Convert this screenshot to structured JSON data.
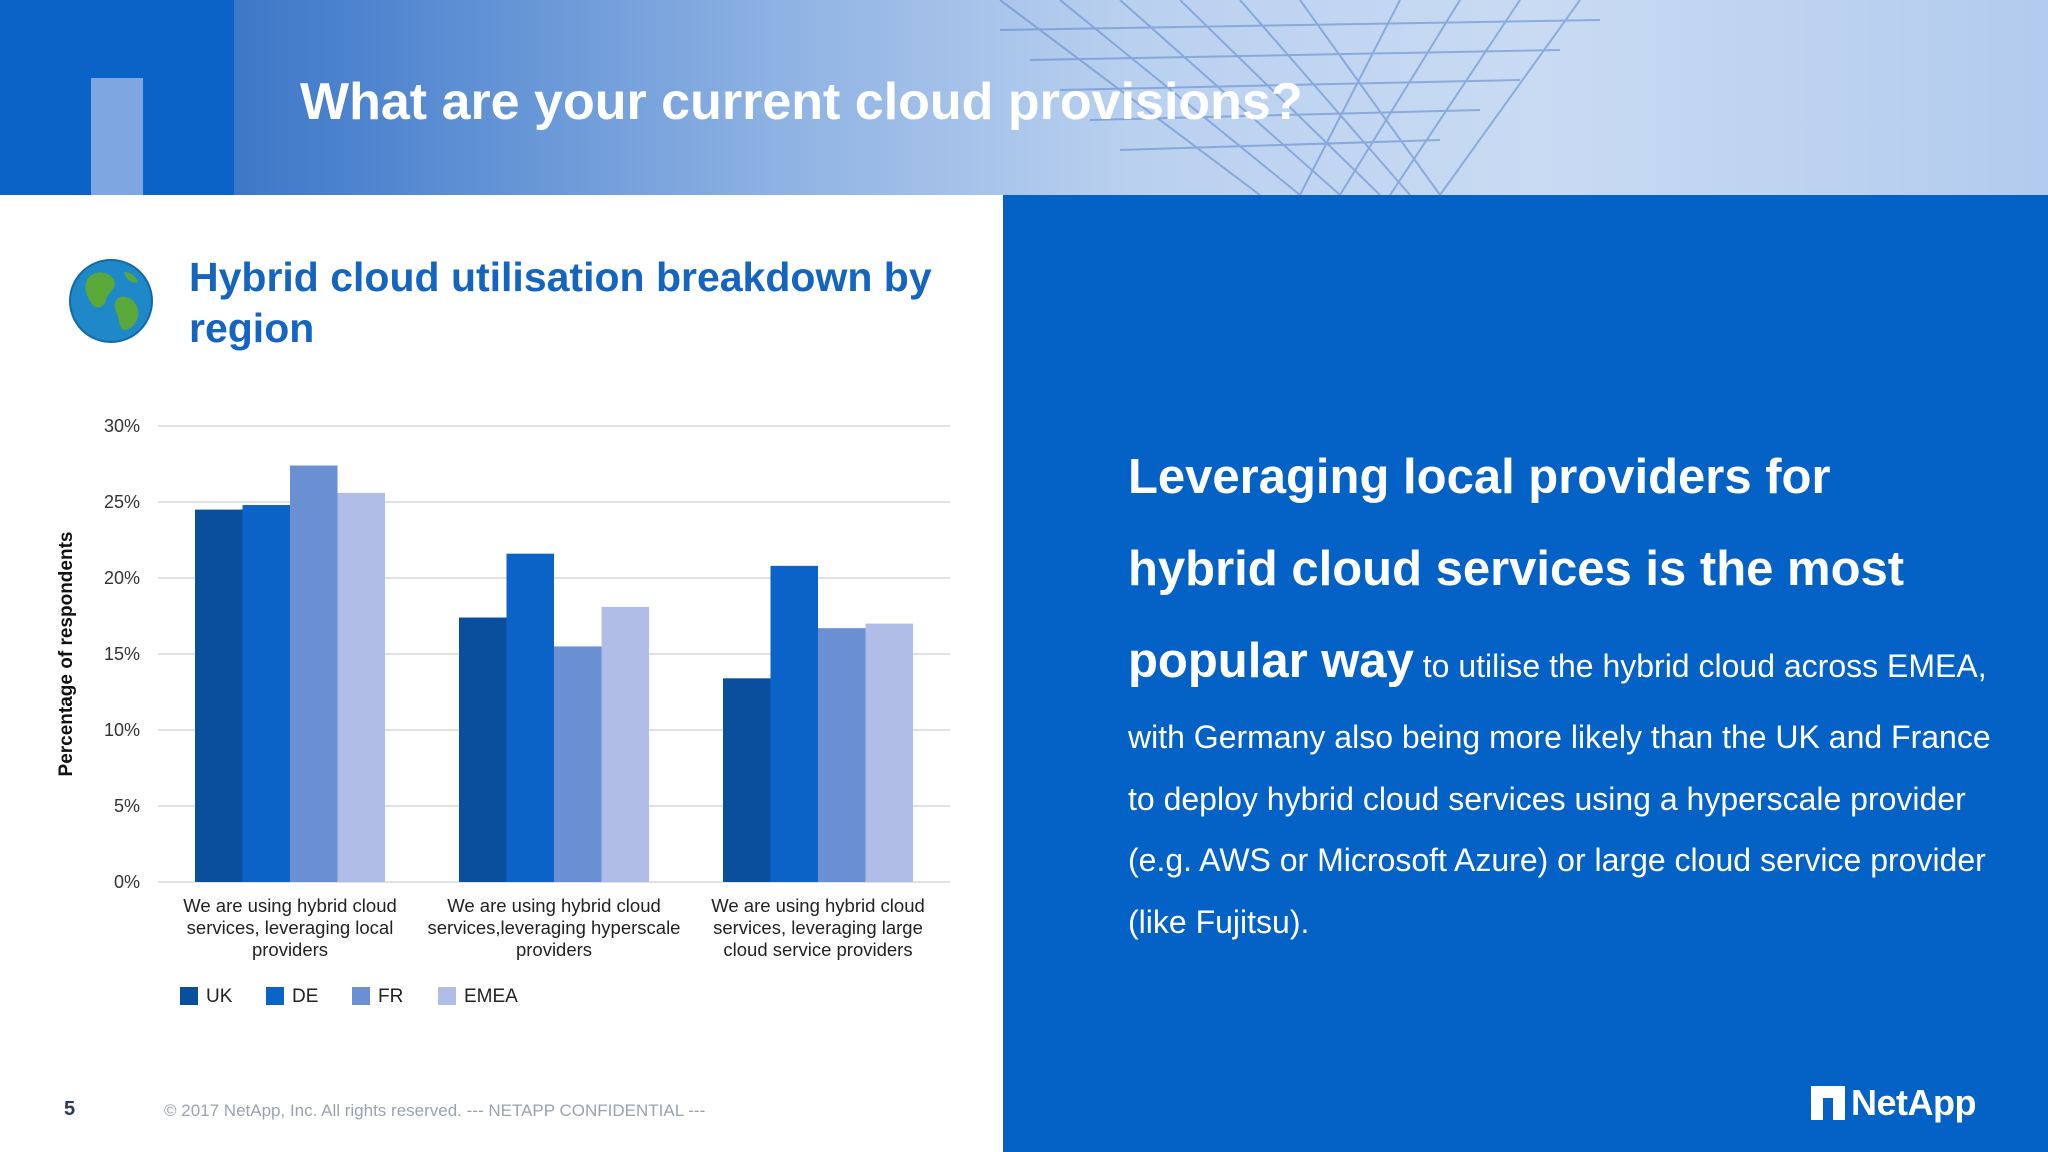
{
  "header": {
    "title": "What are your current cloud provisions?"
  },
  "chart_section": {
    "icon": "globe-icon",
    "title": "Hybrid cloud utilisation breakdown by region"
  },
  "chart_data": {
    "type": "bar",
    "title": "Hybrid cloud utilisation breakdown by region",
    "xlabel": "",
    "ylabel": "Percentage of respondents",
    "ylim": [
      0,
      30
    ],
    "yticks": [
      "0%",
      "5%",
      "10%",
      "15%",
      "20%",
      "25%",
      "30%"
    ],
    "ytick_values": [
      0,
      5,
      10,
      15,
      20,
      25,
      30
    ],
    "categories": [
      [
        "We are using hybrid cloud",
        "services, leveraging local",
        "providers"
      ],
      [
        "We are using hybrid cloud",
        "services,leveraging hyperscale",
        "providers"
      ],
      [
        "We are using hybrid cloud",
        "services, leveraging large",
        "cloud service providers"
      ]
    ],
    "series": [
      {
        "name": "UK",
        "color": "#0a4f9e",
        "values": [
          24.5,
          17.4,
          13.4
        ]
      },
      {
        "name": "DE",
        "color": "#0b63c7",
        "values": [
          24.8,
          21.6,
          20.8
        ]
      },
      {
        "name": "FR",
        "color": "#6a8fd2",
        "values": [
          27.4,
          15.5,
          16.7
        ]
      },
      {
        "name": "EMEA",
        "color": "#b0bde6",
        "values": [
          25.6,
          18.1,
          17.0
        ]
      }
    ],
    "grid": true,
    "legend_position": "bottom-left"
  },
  "insight": {
    "big_line_1": "Leveraging local providers for",
    "big_line_2": "hybrid cloud services is the most",
    "big_line_3": "popular way",
    "rest": "to utilise the hybrid cloud across EMEA, with Germany also being more likely than the UK and France to deploy hybrid cloud services using a hyperscale provider (e.g. AWS or Microsoft Azure) or large cloud service provider (like Fujitsu)."
  },
  "footer": {
    "page_number": "5",
    "copyright": "© 2017 NetApp, Inc. All rights reserved.  --- NETAPP CONFIDENTIAL ---",
    "logo_text": "NetApp",
    "logo_icon": "netapp-logo-icon"
  },
  "colors": {
    "brand_blue": "#0462c6",
    "title_blue": "#1565c0"
  }
}
